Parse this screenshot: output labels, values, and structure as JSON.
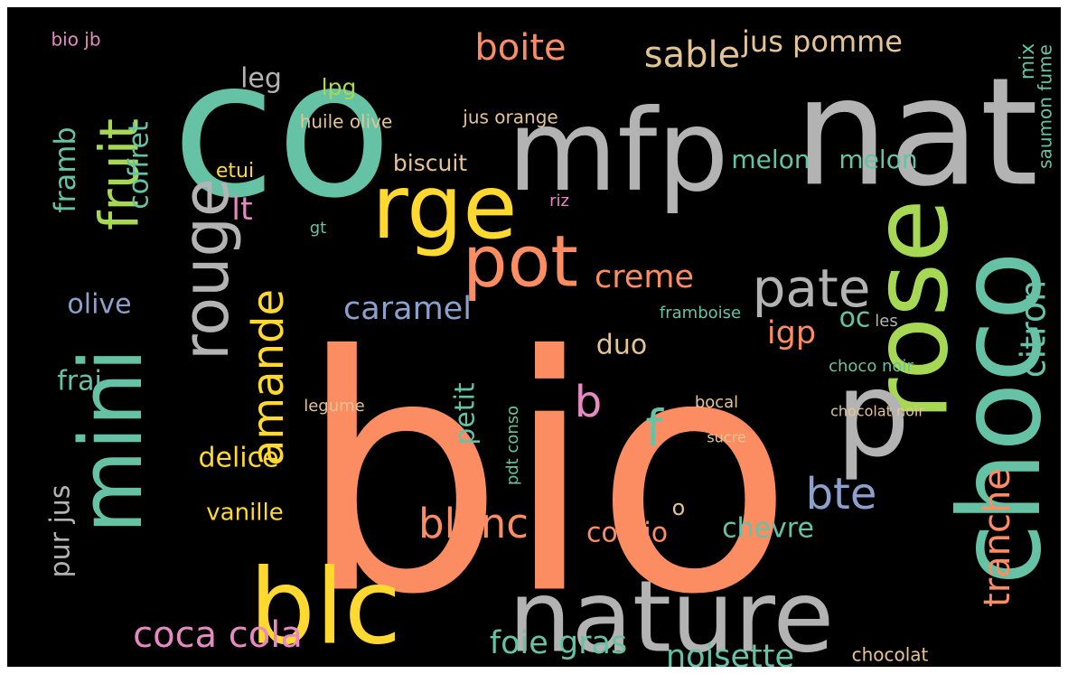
{
  "palette": {
    "background": "#000000",
    "salmon": "#fc8d62",
    "teal": "#66c2a5",
    "grey": "#b3b3b3",
    "lime": "#a6d854",
    "yellow": "#ffd92f",
    "pink": "#e78ac3",
    "blue": "#8da0cb",
    "tan": "#e5c494"
  },
  "words": [
    {
      "text": "bio",
      "color": "salmon"
    },
    {
      "text": "co",
      "color": "teal"
    },
    {
      "text": "nat",
      "color": "grey"
    },
    {
      "text": "mfp",
      "color": "grey"
    },
    {
      "text": "rose",
      "color": "lime"
    },
    {
      "text": "choco",
      "color": "teal"
    },
    {
      "text": "p",
      "color": "grey"
    },
    {
      "text": "nature",
      "color": "grey"
    },
    {
      "text": "blc",
      "color": "yellow"
    },
    {
      "text": "mini",
      "color": "teal"
    },
    {
      "text": "rouge",
      "color": "grey"
    },
    {
      "text": "rge",
      "color": "yellow"
    },
    {
      "text": "pot",
      "color": "salmon"
    },
    {
      "text": "pate",
      "color": "grey"
    },
    {
      "text": "fruit",
      "color": "lime"
    },
    {
      "text": "amande",
      "color": "yellow"
    },
    {
      "text": "tranche",
      "color": "salmon"
    },
    {
      "text": "citron",
      "color": "teal"
    },
    {
      "text": "coca cola",
      "color": "pink"
    },
    {
      "text": "boite",
      "color": "salmon"
    },
    {
      "text": "sable",
      "color": "tan"
    },
    {
      "text": "jus pomme",
      "color": "tan"
    },
    {
      "text": "melon",
      "color": "teal"
    },
    {
      "text": "melon",
      "color": "teal"
    },
    {
      "text": "biscuit",
      "color": "tan"
    },
    {
      "text": "caramel",
      "color": "blue"
    },
    {
      "text": "creme",
      "color": "salmon"
    },
    {
      "text": "igp",
      "color": "salmon"
    },
    {
      "text": "oc",
      "color": "teal"
    },
    {
      "text": "bte",
      "color": "blue"
    },
    {
      "text": "f",
      "color": "teal"
    },
    {
      "text": "b",
      "color": "pink"
    },
    {
      "text": "duo",
      "color": "tan"
    },
    {
      "text": "blanc",
      "color": "salmon"
    },
    {
      "text": "co bio",
      "color": "salmon"
    },
    {
      "text": "chevre",
      "color": "teal"
    },
    {
      "text": "noisette",
      "color": "teal"
    },
    {
      "text": "foie gras",
      "color": "teal"
    },
    {
      "text": "olive",
      "color": "blue"
    },
    {
      "text": "lt",
      "color": "pink"
    },
    {
      "text": "leg",
      "color": "grey"
    },
    {
      "text": "lpg",
      "color": "lime"
    },
    {
      "text": "etui",
      "color": "yellow"
    },
    {
      "text": "coffret",
      "color": "teal"
    },
    {
      "text": "framb",
      "color": "teal"
    },
    {
      "text": "pur jus",
      "color": "grey"
    },
    {
      "text": "frai",
      "color": "teal"
    },
    {
      "text": "petit",
      "color": "teal"
    },
    {
      "text": "delice",
      "color": "yellow"
    },
    {
      "text": "vanille",
      "color": "yellow"
    },
    {
      "text": "huile olive",
      "color": "tan"
    },
    {
      "text": "jus orange",
      "color": "tan"
    },
    {
      "text": "saumon fume",
      "color": "teal"
    },
    {
      "text": "mix",
      "color": "teal"
    },
    {
      "text": "chocolat",
      "color": "tan"
    },
    {
      "text": "bio jb",
      "color": "pink"
    },
    {
      "text": "framboise",
      "color": "teal"
    },
    {
      "text": "choco noir",
      "color": "teal"
    },
    {
      "text": "legume",
      "color": "tan"
    },
    {
      "text": "bocal",
      "color": "tan"
    },
    {
      "text": "les",
      "color": "grey"
    },
    {
      "text": "riz",
      "color": "pink"
    },
    {
      "text": "gt",
      "color": "teal"
    },
    {
      "text": "pdt conso",
      "color": "teal"
    },
    {
      "text": "o",
      "color": "tan"
    },
    {
      "text": "sucre",
      "color": "tan"
    },
    {
      "text": "chocolat noir",
      "color": "tan"
    }
  ]
}
